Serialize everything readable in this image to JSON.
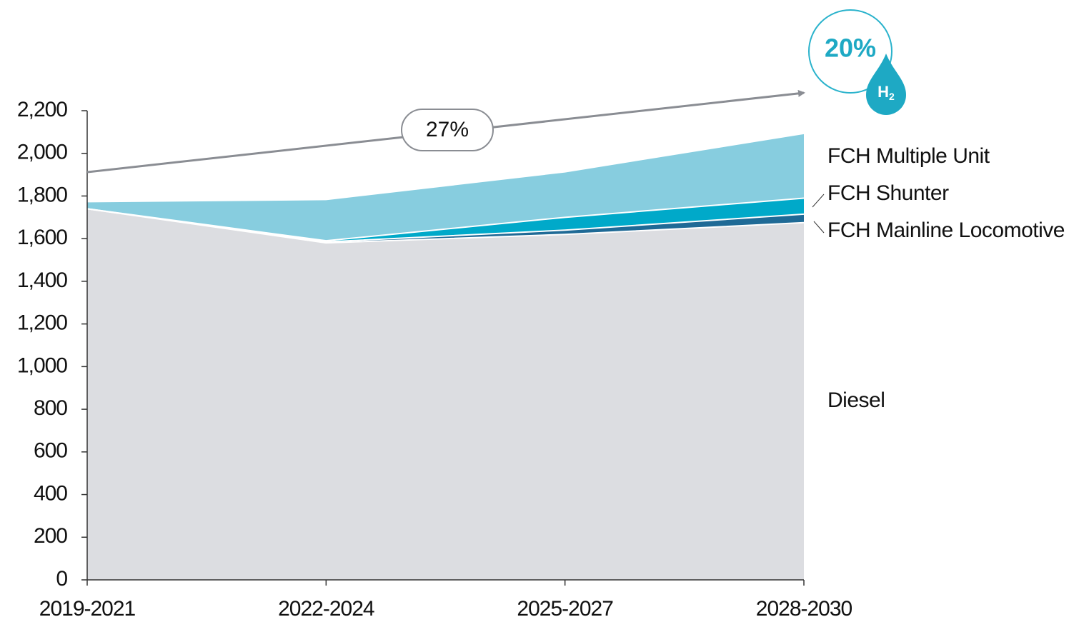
{
  "chart_data": {
    "type": "stacked_area",
    "categories": [
      "2019-2021",
      "2022-2024",
      "2025-2027",
      "2028-2030"
    ],
    "series": [
      {
        "name": "Diesel",
        "color": "#dcdde1",
        "values": [
          1740,
          1580,
          1620,
          1675
        ]
      },
      {
        "name": "FCH Mainline Locomotive",
        "color": "#1f6a96",
        "values": [
          0,
          5,
          20,
          40
        ]
      },
      {
        "name": "FCH Shunter",
        "color": "#00a9c9",
        "values": [
          0,
          5,
          60,
          75
        ]
      },
      {
        "name": "FCH Multiple Unit",
        "color": "#87cddf",
        "values": [
          30,
          190,
          210,
          300
        ]
      }
    ],
    "ylim": [
      0,
      2200
    ],
    "yticks": [
      0,
      200,
      400,
      600,
      800,
      {
        "value": 1000,
        "label": "1,000"
      },
      {
        "value": 1200,
        "label": "1,200"
      },
      {
        "value": 1400,
        "label": "1,400"
      },
      {
        "value": 1600,
        "label": "1,600"
      },
      {
        "value": 1800,
        "label": "1,800"
      },
      {
        "value": 2000,
        "label": "2,000"
      },
      {
        "value": 2200,
        "label": "2,200"
      }
    ],
    "arrow_label": "27%",
    "badge_label": "20%",
    "badge_icon": "H",
    "badge_icon_sub": "2"
  }
}
